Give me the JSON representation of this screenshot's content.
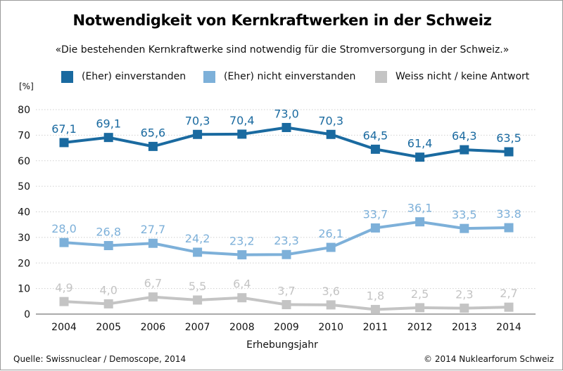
{
  "chart_data": {
    "type": "line",
    "title": "Notwendigkeit von Kernkraftwerken in der Schweiz",
    "subtitle": "«Die bestehenden Kernkraftwerke sind notwendig für die Stromversorgung in der Schweiz.»",
    "xlabel": "Erhebungsjahr",
    "ylabel": "[%]",
    "ylim": [
      0,
      80
    ],
    "yticks": [
      0,
      10,
      20,
      30,
      40,
      50,
      60,
      70,
      80
    ],
    "grid": true,
    "legend_position": "top",
    "categories": [
      "2004",
      "2005",
      "2006",
      "2007",
      "2008",
      "2009",
      "2010",
      "2011",
      "2012",
      "2013",
      "2014"
    ],
    "series": [
      {
        "name": "(Eher) einverstanden",
        "color": "#1a6aa0",
        "values": [
          67.1,
          69.1,
          65.6,
          70.3,
          70.4,
          73.0,
          70.3,
          64.5,
          61.4,
          64.3,
          63.5
        ],
        "labels": [
          "67,1",
          "69,1",
          "65,6",
          "70,3",
          "70,4",
          "73,0",
          "70,3",
          "64,5",
          "61,4",
          "64,3",
          "63,5"
        ]
      },
      {
        "name": "(Eher) nicht einverstanden",
        "color": "#7db0d9",
        "values": [
          28.0,
          26.8,
          27.7,
          24.2,
          23.2,
          23.3,
          26.1,
          33.7,
          36.1,
          33.5,
          33.8
        ],
        "labels": [
          "28,0",
          "26,8",
          "27,7",
          "24,2",
          "23,2",
          "23,3",
          "26,1",
          "33,7",
          "36,1",
          "33,5",
          "33.8"
        ]
      },
      {
        "name": "Weiss nicht / keine Antwort",
        "color": "#c4c4c4",
        "values": [
          4.9,
          4.0,
          6.7,
          5.5,
          6.4,
          3.7,
          3.6,
          1.8,
          2.5,
          2.3,
          2.7
        ],
        "labels": [
          "4,9",
          "4,0",
          "6,7",
          "5,5",
          "6,4",
          "3,7",
          "3,6",
          "1,8",
          "2,5",
          "2,3",
          "2,7"
        ]
      }
    ]
  },
  "footer": {
    "source": "Quelle: Swissnuclear / Demoscope, 2014",
    "copyright": "© 2014 Nuklearforum Schweiz"
  }
}
